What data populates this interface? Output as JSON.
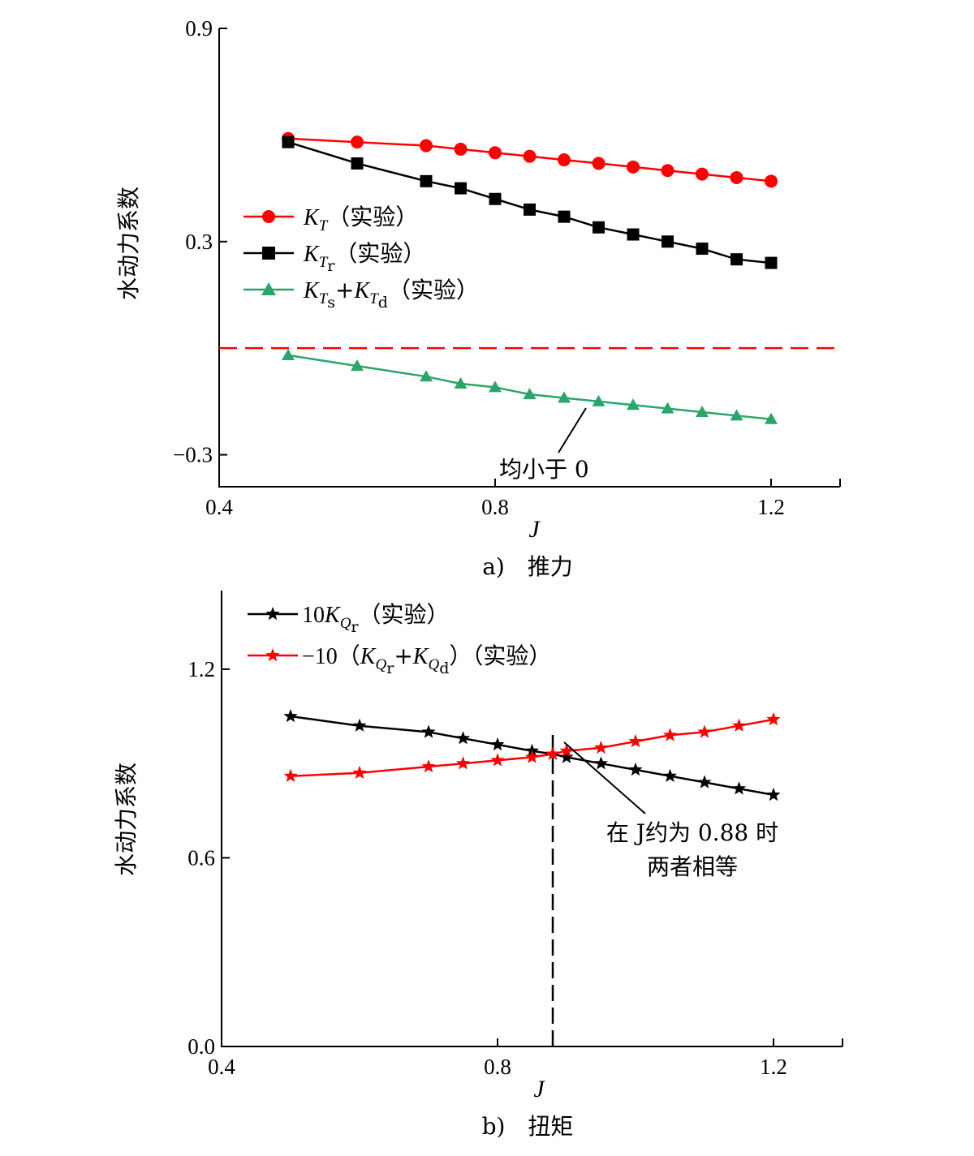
{
  "chart_data": [
    {
      "type": "line",
      "caption": "a)　推力",
      "xlabel": "J",
      "ylabel": "水动力系数",
      "xlim": [
        0.4,
        1.3
      ],
      "ylim": [
        -0.39,
        0.9
      ],
      "xticks": [
        0.4,
        0.8,
        1.2
      ],
      "xtick_labels": [
        "0.4",
        "0.8",
        "1.2"
      ],
      "yticks": [
        0.9,
        0.3,
        -0.3
      ],
      "ytick_labels": [
        "0.9",
        "0.3",
        "−0.3"
      ],
      "x": [
        0.5,
        0.6,
        0.7,
        0.75,
        0.8,
        0.85,
        0.9,
        0.95,
        1.0,
        1.05,
        1.1,
        1.15,
        1.2
      ],
      "series": [
        {
          "name": "K_T(实验)",
          "color": "#ff0000",
          "marker": "circle",
          "values": [
            0.59,
            0.58,
            0.57,
            0.56,
            0.55,
            0.54,
            0.53,
            0.52,
            0.51,
            0.5,
            0.49,
            0.48,
            0.47
          ]
        },
        {
          "name": "K_Tr(实验)",
          "color": "#000000",
          "marker": "square",
          "values": [
            0.58,
            0.52,
            0.47,
            0.45,
            0.42,
            0.39,
            0.37,
            0.34,
            0.32,
            0.3,
            0.28,
            0.25,
            0.24
          ]
        },
        {
          "name": "K_Ts+K_Td(实验)",
          "color": "#2aa66a",
          "marker": "triangle",
          "values": [
            -0.02,
            -0.05,
            -0.08,
            -0.1,
            -0.11,
            -0.13,
            -0.14,
            -0.15,
            -0.16,
            -0.17,
            -0.18,
            -0.19,
            -0.2
          ]
        }
      ],
      "reference_line": {
        "y": 0.0,
        "color": "#ff0000",
        "style": "dashed"
      },
      "annotation": {
        "text": "均小于 0"
      },
      "legend_position": "middle-left"
    },
    {
      "type": "line",
      "caption": "b)　扭矩",
      "xlabel": "J",
      "ylabel": "水动力系数",
      "xlim": [
        0.4,
        1.3
      ],
      "ylim": [
        0.0,
        1.45
      ],
      "xticks": [
        0.4,
        0.8,
        1.2
      ],
      "xtick_labels": [
        "0.4",
        "0.8",
        "1.2"
      ],
      "yticks": [
        0.0,
        0.6,
        1.2
      ],
      "ytick_labels": [
        "0.0",
        "0.6",
        "1.2"
      ],
      "x": [
        0.5,
        0.6,
        0.7,
        0.75,
        0.8,
        0.85,
        0.88,
        0.9,
        0.95,
        1.0,
        1.05,
        1.1,
        1.15,
        1.2
      ],
      "series": [
        {
          "name": "10K_Qr(实验)",
          "color": "#000000",
          "marker": "star",
          "values": [
            1.05,
            1.02,
            1.0,
            0.98,
            0.96,
            0.94,
            0.93,
            0.92,
            0.9,
            0.88,
            0.86,
            0.84,
            0.82,
            0.8
          ]
        },
        {
          "name": "-10(K_Qr+K_Qd)(实验)",
          "color": "#ff0000",
          "marker": "star",
          "values": [
            0.86,
            0.87,
            0.89,
            0.9,
            0.91,
            0.92,
            0.93,
            0.94,
            0.95,
            0.97,
            0.99,
            1.0,
            1.02,
            1.04
          ]
        }
      ],
      "reference_line": {
        "x": 0.88,
        "color": "#000000",
        "style": "dashed"
      },
      "annotation": {
        "text_line1": "在 J约为 0.88 时",
        "text_line2": "两者相等"
      },
      "legend_position": "top-left"
    }
  ],
  "legend": {
    "a_kt_label": "（实验）",
    "a_ktr_label": "（实验）",
    "a_ktsd_label": "（实验）",
    "b_kqr_prefix": "10",
    "b_kqr_label": "（实验）",
    "b_neg_prefix": "−10（",
    "b_neg_label": "）（实验）"
  }
}
